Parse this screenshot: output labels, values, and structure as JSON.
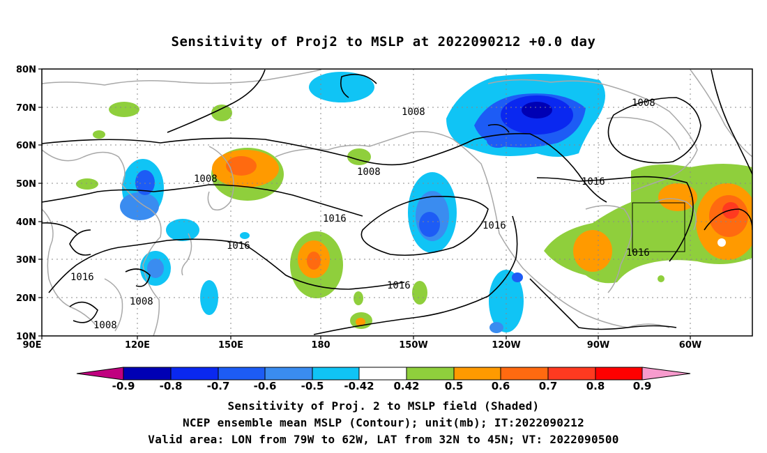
{
  "title": "Sensitivity of Proj2 to MSLP at 2022090212 +0.0 day",
  "map": {
    "projection": "cylindrical equidistant",
    "lon_range": [
      "90E",
      "34W"
    ],
    "lat_range": [
      "10N",
      "80N"
    ],
    "lat_labels": [
      "80N",
      "70N",
      "60N",
      "50N",
      "40N",
      "30N",
      "20N",
      "10N"
    ],
    "lon_labels": [
      "90E",
      "120E",
      "150E",
      "180",
      "150W",
      "120W",
      "90W",
      "60W"
    ],
    "gridlines": "dotted",
    "coastline_color": "#a8a8a8",
    "contour_color": "#000000",
    "contour_labels": [
      "1008",
      "1008",
      "1008",
      "1008",
      "1008",
      "1008",
      "1016",
      "1016",
      "1016",
      "1016",
      "1016",
      "1016",
      "1016"
    ],
    "valid_box": {
      "lon": [
        "79W",
        "62W"
      ],
      "lat": [
        "32N",
        "45N"
      ]
    }
  },
  "colorbar": {
    "colors": [
      "#c0007f",
      "#0000b4",
      "#0a28f0",
      "#1d5cf5",
      "#3a8cf0",
      "#10c4f5",
      "#ffffff",
      "#8fcf3c",
      "#ff9a00",
      "#ff6a10",
      "#ff3a20",
      "#ff0000",
      "#f79bcd"
    ],
    "labels": [
      "-0.9",
      "-0.8",
      "-0.7",
      "-0.6",
      "-0.5",
      "-0.42",
      "0.42",
      "0.5",
      "0.6",
      "0.7",
      "0.8",
      "0.9"
    ]
  },
  "captions": [
    "Sensitivity of Proj. 2 to MSLP field (Shaded)",
    "NCEP ensemble mean MSLP (Contour); unit(mb); IT:2022090212",
    "Valid area: LON from 79W to 62W, LAT from 32N to 45N; VT: 2022090500"
  ]
}
